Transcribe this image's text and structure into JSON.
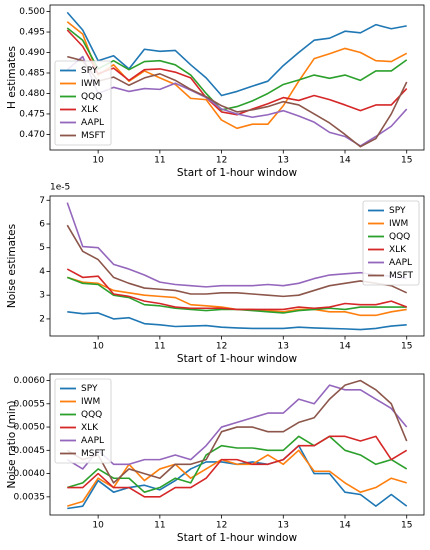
{
  "chart_data": [
    {
      "type": "line",
      "ylabel": "H estimates",
      "xlabel": "Start of 1-hour window",
      "legend": "lower left",
      "grid": false,
      "x": [
        9.5,
        9.75,
        10,
        10.25,
        10.5,
        10.75,
        11,
        11.25,
        11.5,
        11.75,
        12,
        12.25,
        12.5,
        12.75,
        13,
        13.25,
        13.5,
        13.75,
        14,
        14.25,
        14.5,
        14.75,
        15
      ],
      "xlim": [
        9.22,
        15.28
      ],
      "xticks": [
        10,
        11,
        12,
        13,
        14,
        15
      ],
      "ylim": [
        0.4662,
        0.5016
      ],
      "yticks": [
        {
          "value": 0.47,
          "label": "0.470"
        },
        {
          "value": 0.475,
          "label": "0.475"
        },
        {
          "value": 0.48,
          "label": "0.480"
        },
        {
          "value": 0.485,
          "label": "0.485"
        },
        {
          "value": 0.49,
          "label": "0.490"
        },
        {
          "value": 0.495,
          "label": "0.495"
        },
        {
          "value": 0.5,
          "label": "0.500"
        }
      ],
      "series": [
        {
          "name": "SPY",
          "color": "#1f77b4",
          "values": [
            0.4998,
            0.4955,
            0.488,
            0.4892,
            0.486,
            0.4908,
            0.4903,
            0.4905,
            0.487,
            0.4838,
            0.4795,
            0.4805,
            0.4818,
            0.483,
            0.4868,
            0.49,
            0.493,
            0.4935,
            0.4952,
            0.4948,
            0.4968,
            0.4958,
            0.4965
          ]
        },
        {
          "name": "IWM",
          "color": "#ff7f0e",
          "values": [
            0.4975,
            0.4945,
            0.4845,
            0.487,
            0.483,
            0.4855,
            0.4838,
            0.4822,
            0.4788,
            0.4785,
            0.4735,
            0.4715,
            0.4725,
            0.4725,
            0.477,
            0.483,
            0.4885,
            0.4897,
            0.491,
            0.49,
            0.488,
            0.4878,
            0.4898
          ]
        },
        {
          "name": "QQQ",
          "color": "#2ca02c",
          "values": [
            0.496,
            0.493,
            0.486,
            0.488,
            0.4858,
            0.4878,
            0.488,
            0.487,
            0.4845,
            0.48,
            0.476,
            0.4768,
            0.4782,
            0.48,
            0.4822,
            0.4833,
            0.4845,
            0.4837,
            0.4845,
            0.4832,
            0.4855,
            0.4855,
            0.4882
          ]
        },
        {
          "name": "XLK",
          "color": "#d62728",
          "values": [
            0.4955,
            0.4915,
            0.4848,
            0.4862,
            0.4832,
            0.4858,
            0.486,
            0.4852,
            0.4838,
            0.479,
            0.4755,
            0.4748,
            0.4762,
            0.4775,
            0.479,
            0.4783,
            0.4795,
            0.4785,
            0.4772,
            0.4758,
            0.4772,
            0.4772,
            0.4812
          ]
        },
        {
          "name": "AAPL",
          "color": "#9467bd",
          "values": [
            0.4858,
            0.489,
            0.48,
            0.4815,
            0.4805,
            0.4812,
            0.481,
            0.4825,
            0.4808,
            0.479,
            0.4762,
            0.475,
            0.4742,
            0.4748,
            0.4758,
            0.4745,
            0.473,
            0.4705,
            0.4695,
            0.4672,
            0.4695,
            0.472,
            0.4762
          ]
        },
        {
          "name": "MSFT",
          "color": "#8c564b",
          "values": [
            0.489,
            0.488,
            0.483,
            0.484,
            0.482,
            0.4838,
            0.4848,
            0.4832,
            0.481,
            0.4792,
            0.477,
            0.4755,
            0.476,
            0.4768,
            0.478,
            0.4772,
            0.475,
            0.4728,
            0.47,
            0.467,
            0.469,
            0.475,
            0.4828
          ]
        }
      ]
    },
    {
      "type": "line",
      "ylabel": "Noise estimates",
      "xlabel": "Start of 1-hour window",
      "offset_text": "1e-5",
      "legend": "upper right",
      "grid": false,
      "x": [
        9.5,
        9.75,
        10,
        10.25,
        10.5,
        10.75,
        11,
        11.25,
        11.5,
        11.75,
        12,
        12.25,
        12.5,
        12.75,
        13,
        13.25,
        13.5,
        13.75,
        14,
        14.25,
        14.5,
        14.75,
        15
      ],
      "xlim": [
        9.22,
        15.28
      ],
      "xticks": [
        10,
        11,
        12,
        13,
        14,
        15
      ],
      "ylim": [
        1.28,
        7.18
      ],
      "yticks": [
        2,
        3,
        4,
        5,
        6,
        7
      ],
      "series": [
        {
          "name": "SPY",
          "color": "#1f77b4",
          "values": [
            2.3,
            2.22,
            2.25,
            2.0,
            2.05,
            1.8,
            1.75,
            1.68,
            1.7,
            1.72,
            1.65,
            1.62,
            1.6,
            1.6,
            1.6,
            1.65,
            1.62,
            1.6,
            1.58,
            1.55,
            1.6,
            1.7,
            1.75
          ]
        },
        {
          "name": "IWM",
          "color": "#ff7f0e",
          "values": [
            3.75,
            3.55,
            3.5,
            3.2,
            3.1,
            3.0,
            2.95,
            2.9,
            2.6,
            2.55,
            2.5,
            2.4,
            2.4,
            2.35,
            2.3,
            2.4,
            2.4,
            2.3,
            2.3,
            2.15,
            2.15,
            2.3,
            2.4
          ]
        },
        {
          "name": "QQQ",
          "color": "#2ca02c",
          "values": [
            3.75,
            3.5,
            3.45,
            3.0,
            2.9,
            2.6,
            2.55,
            2.45,
            2.4,
            2.35,
            2.4,
            2.4,
            2.35,
            2.3,
            2.25,
            2.35,
            2.4,
            2.45,
            2.4,
            2.5,
            2.5,
            2.5,
            2.5
          ]
        },
        {
          "name": "XLK",
          "color": "#d62728",
          "values": [
            4.1,
            3.75,
            3.8,
            3.05,
            2.95,
            2.75,
            2.65,
            2.5,
            2.45,
            2.45,
            2.45,
            2.4,
            2.4,
            2.4,
            2.4,
            2.5,
            2.45,
            2.5,
            2.65,
            2.6,
            2.6,
            2.75,
            2.5
          ]
        },
        {
          "name": "AAPL",
          "color": "#9467bd",
          "values": [
            6.9,
            5.05,
            5.0,
            4.3,
            4.1,
            3.85,
            3.55,
            3.45,
            3.4,
            3.35,
            3.4,
            3.4,
            3.4,
            3.45,
            3.4,
            3.5,
            3.7,
            3.85,
            3.9,
            3.95,
            3.85,
            3.8,
            3.7
          ]
        },
        {
          "name": "MSFT",
          "color": "#8c564b",
          "values": [
            5.95,
            4.85,
            4.5,
            3.75,
            3.5,
            3.3,
            3.25,
            3.2,
            3.05,
            3.05,
            3.1,
            3.1,
            3.05,
            3.0,
            2.95,
            3.0,
            3.2,
            3.4,
            3.5,
            3.6,
            3.5,
            3.4,
            3.1
          ]
        }
      ]
    },
    {
      "type": "line",
      "ylabel": "Noise ratio (min)",
      "xlabel": "Start of 1-hour window",
      "legend": "upper left",
      "grid": false,
      "x": [
        9.5,
        9.75,
        10,
        10.25,
        10.5,
        10.75,
        11,
        11.25,
        11.5,
        11.75,
        12,
        12.25,
        12.5,
        12.75,
        13,
        13.25,
        13.5,
        13.75,
        14,
        14.25,
        14.5,
        14.75,
        15
      ],
      "xlim": [
        9.22,
        15.28
      ],
      "xticks": [
        10,
        11,
        12,
        13,
        14,
        15
      ],
      "ylim": [
        0.00311,
        0.00614
      ],
      "yticks": [
        {
          "value": 0.0035,
          "label": "0.0035"
        },
        {
          "value": 0.004,
          "label": "0.0040"
        },
        {
          "value": 0.0045,
          "label": "0.0045"
        },
        {
          "value": 0.005,
          "label": "0.0050"
        },
        {
          "value": 0.0055,
          "label": "0.0055"
        },
        {
          "value": 0.006,
          "label": "0.0060"
        }
      ],
      "series": [
        {
          "name": "SPY",
          "color": "#1f77b4",
          "values": [
            0.00325,
            0.0033,
            0.00385,
            0.0036,
            0.0037,
            0.00375,
            0.00365,
            0.00385,
            0.0041,
            0.00425,
            0.00425,
            0.0042,
            0.00425,
            0.0042,
            0.0043,
            0.0046,
            0.004,
            0.004,
            0.0036,
            0.00355,
            0.0033,
            0.00355,
            0.0033
          ]
        },
        {
          "name": "IWM",
          "color": "#ff7f0e",
          "values": [
            0.0033,
            0.0034,
            0.0039,
            0.0037,
            0.0042,
            0.00385,
            0.0041,
            0.0042,
            0.0039,
            0.0041,
            0.0043,
            0.0042,
            0.0042,
            0.0044,
            0.0042,
            0.0045,
            0.00405,
            0.00405,
            0.0038,
            0.0036,
            0.0037,
            0.0039,
            0.0038
          ]
        },
        {
          "name": "QQQ",
          "color": "#2ca02c",
          "values": [
            0.0037,
            0.0038,
            0.0041,
            0.0039,
            0.0039,
            0.0036,
            0.0037,
            0.0039,
            0.0038,
            0.0044,
            0.0046,
            0.00455,
            0.00455,
            0.0045,
            0.0045,
            0.0048,
            0.0046,
            0.0048,
            0.0045,
            0.0044,
            0.0042,
            0.0043,
            0.0041
          ]
        },
        {
          "name": "XLK",
          "color": "#d62728",
          "values": [
            0.0037,
            0.0037,
            0.004,
            0.0037,
            0.0037,
            0.0035,
            0.0035,
            0.0037,
            0.0037,
            0.0039,
            0.0043,
            0.0043,
            0.0042,
            0.0042,
            0.0043,
            0.0046,
            0.0046,
            0.0048,
            0.0048,
            0.0047,
            0.0048,
            0.0043,
            0.0045
          ]
        },
        {
          "name": "AAPL",
          "color": "#9467bd",
          "values": [
            0.0043,
            0.0041,
            0.0045,
            0.0042,
            0.0042,
            0.0043,
            0.0043,
            0.0044,
            0.0043,
            0.0046,
            0.005,
            0.0051,
            0.0052,
            0.0053,
            0.0053,
            0.0056,
            0.0055,
            0.0059,
            0.0058,
            0.0058,
            0.0056,
            0.0054,
            0.005
          ]
        },
        {
          "name": "MSFT",
          "color": "#8c564b",
          "values": [
            0.0045,
            0.0043,
            0.0044,
            0.0038,
            0.0041,
            0.004,
            0.0039,
            0.0042,
            0.0042,
            0.0043,
            0.0049,
            0.005,
            0.005,
            0.0049,
            0.0049,
            0.0051,
            0.0052,
            0.0056,
            0.0059,
            0.006,
            0.0058,
            0.0055,
            0.0047
          ]
        }
      ]
    }
  ]
}
